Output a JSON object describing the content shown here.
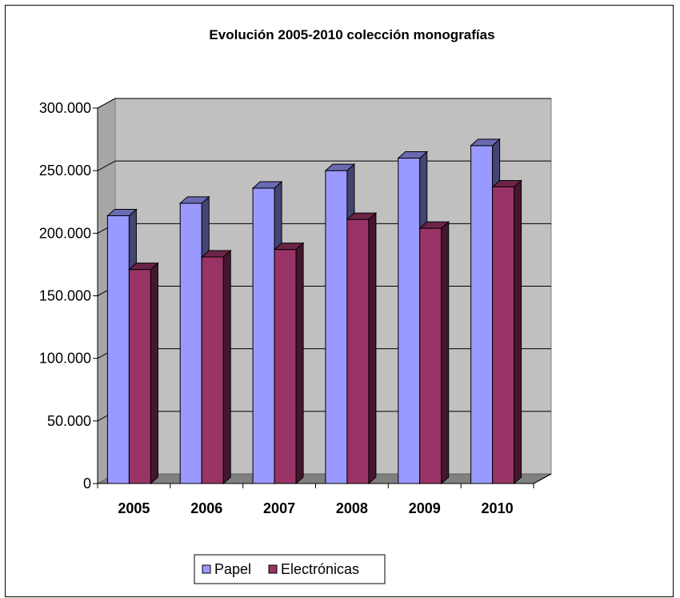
{
  "chart_data": {
    "type": "bar",
    "title": "Evolución 2005-2010 colección monografías",
    "categories": [
      "2005",
      "2006",
      "2007",
      "2008",
      "2009",
      "2010"
    ],
    "series": [
      {
        "name": "Papel",
        "values": [
          214000,
          224000,
          236000,
          250000,
          260000,
          270000
        ],
        "color": "#9999ff"
      },
      {
        "name": "Electrónicas",
        "values": [
          171000,
          181000,
          187000,
          211000,
          204000,
          237000
        ],
        "color": "#993366"
      }
    ],
    "yticks": [
      "0",
      "50.000",
      "100.000",
      "150.000",
      "200.000",
      "250.000",
      "300.000"
    ],
    "ylim": [
      0,
      300000
    ],
    "grid": true,
    "legend_position": "bottom",
    "colors": {
      "wall": "#c0c0c0",
      "floor": "#808080",
      "grid": "#000000"
    }
  }
}
